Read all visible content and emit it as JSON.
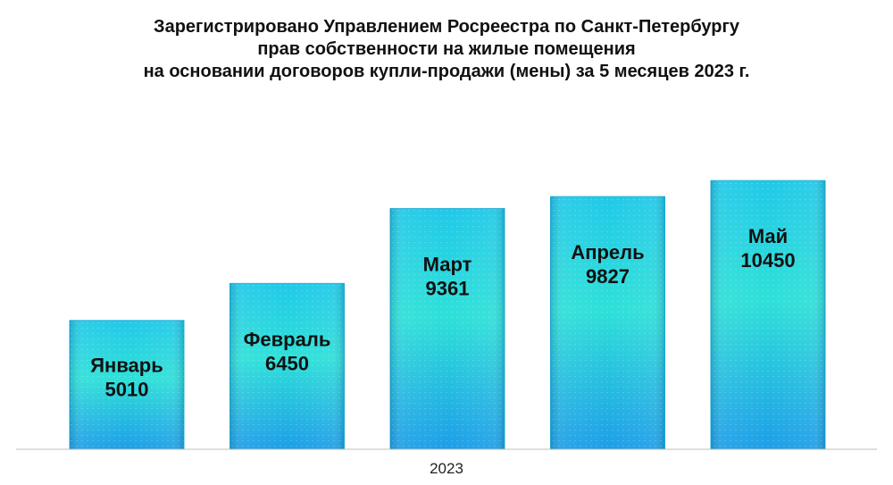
{
  "chart_data": {
    "type": "bar",
    "title_lines": [
      "Зарегистрировано Управлением Росреестра по Санкт-Петербургу",
      "прав собственности на жилые помещения",
      "на основании договоров купли-продажи (мены) за 5 месяцев 2023 г."
    ],
    "categories": [
      "Январь",
      "Февраль",
      "Март",
      "Апрель",
      "Май"
    ],
    "values": [
      5010,
      6450,
      9361,
      9827,
      10450
    ],
    "xlabel": "2023",
    "ylabel": "",
    "ylim": [
      0,
      14000
    ],
    "grid": false,
    "legend": "none",
    "colors": {
      "bar_top": "#21c9e8",
      "bar_mid": "#2ee0d8",
      "bar_bottom": "#1e9ee8",
      "bar_edge": "#1fb0d8",
      "axis": "#bfbfbf"
    }
  }
}
